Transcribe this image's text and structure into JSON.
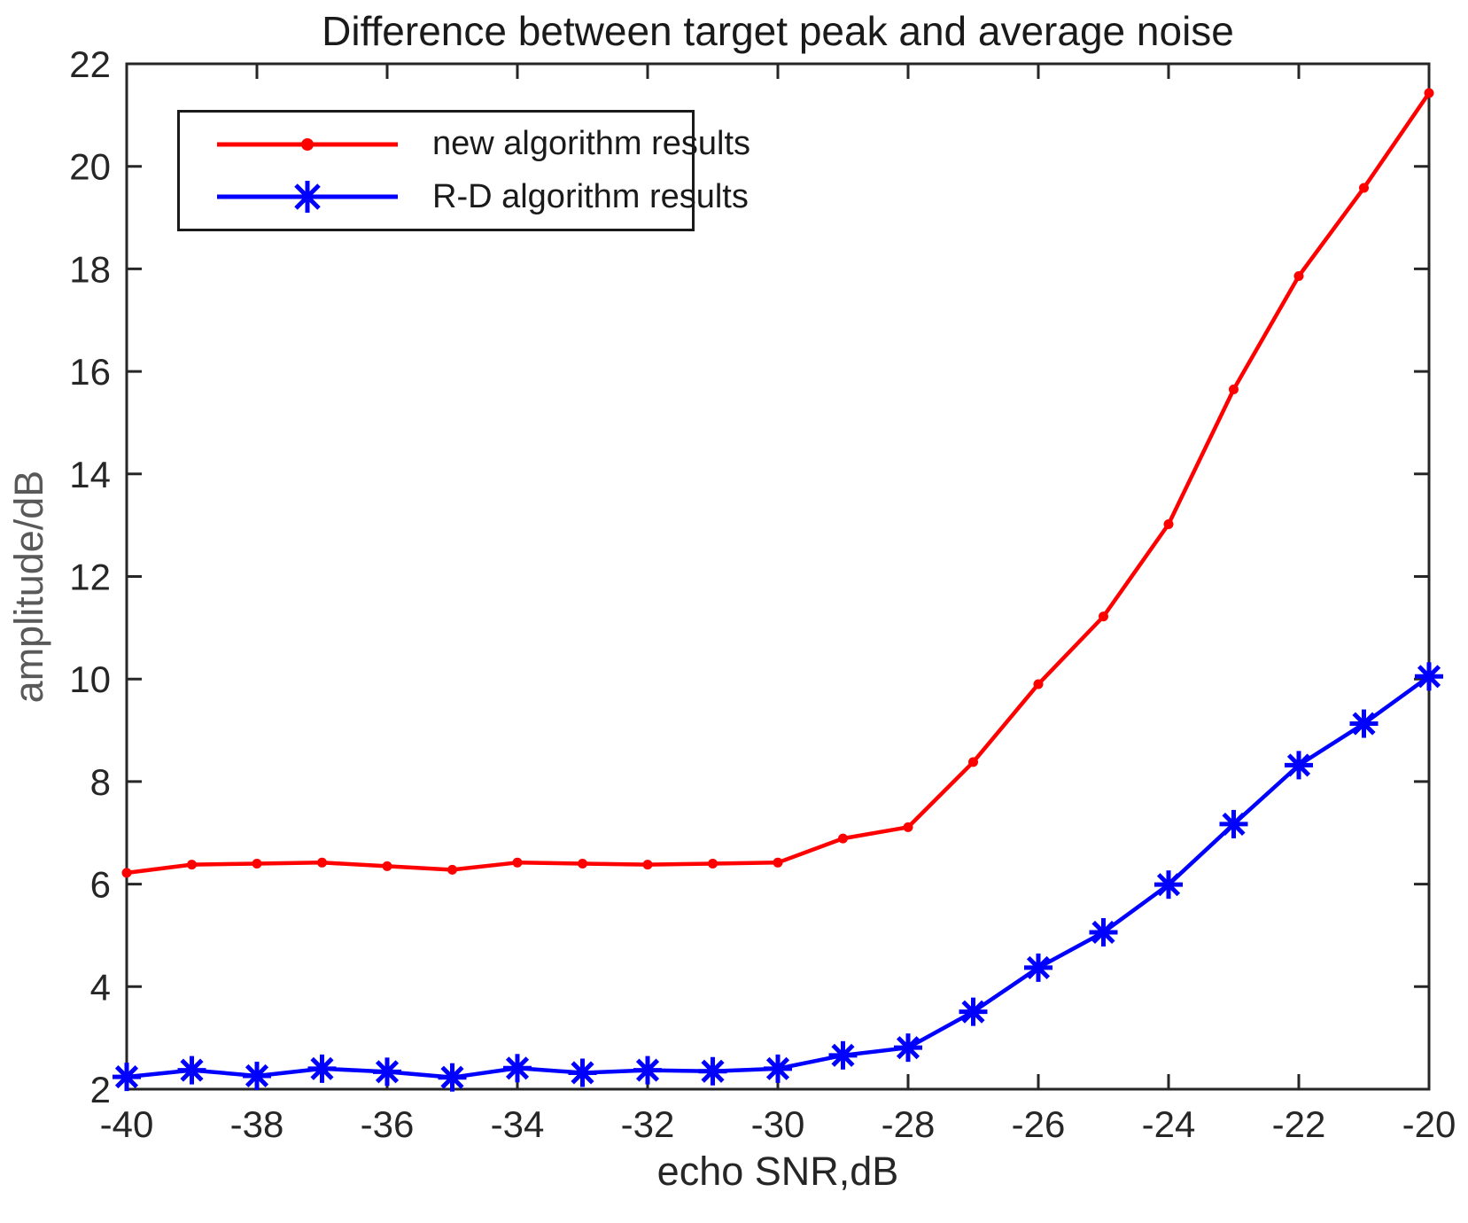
{
  "chart_data": {
    "type": "line",
    "title": "Difference between target peak and average noise",
    "xlabel": "echo SNR,dB",
    "ylabel": "amplitude/dB",
    "xlim": [
      -40,
      -20
    ],
    "ylim": [
      2,
      22
    ],
    "xticks": [
      -40,
      -38,
      -36,
      -34,
      -32,
      -30,
      -28,
      -26,
      -24,
      -22,
      -20
    ],
    "yticks": [
      2,
      4,
      6,
      8,
      10,
      12,
      14,
      16,
      18,
      20,
      22
    ],
    "grid": false,
    "axis_color": "#262626",
    "tick_label_color": "#262626",
    "legend_position": "top-left",
    "x": [
      -40,
      -39,
      -38,
      -37,
      -36,
      -35,
      -34,
      -33,
      -32,
      -31,
      -30,
      -29,
      -28,
      -27,
      -26,
      -25,
      -24,
      -23,
      -22,
      -21,
      -20
    ],
    "series": [
      {
        "name": "new algorithm results",
        "color": "#ff0000",
        "marker": "dot",
        "values": [
          6.22,
          6.38,
          6.4,
          6.42,
          6.35,
          6.28,
          6.42,
          6.4,
          6.38,
          6.4,
          6.42,
          6.89,
          7.11,
          8.38,
          9.9,
          11.22,
          13.02,
          15.65,
          17.86,
          19.58,
          21.43
        ]
      },
      {
        "name": "R-D algorithm results",
        "color": "#0000ff",
        "marker": "asterisk",
        "values": [
          2.24,
          2.37,
          2.26,
          2.4,
          2.34,
          2.23,
          2.41,
          2.32,
          2.37,
          2.35,
          2.4,
          2.66,
          2.81,
          3.51,
          4.37,
          5.06,
          5.99,
          7.17,
          8.32,
          9.13,
          10.05
        ]
      }
    ]
  }
}
